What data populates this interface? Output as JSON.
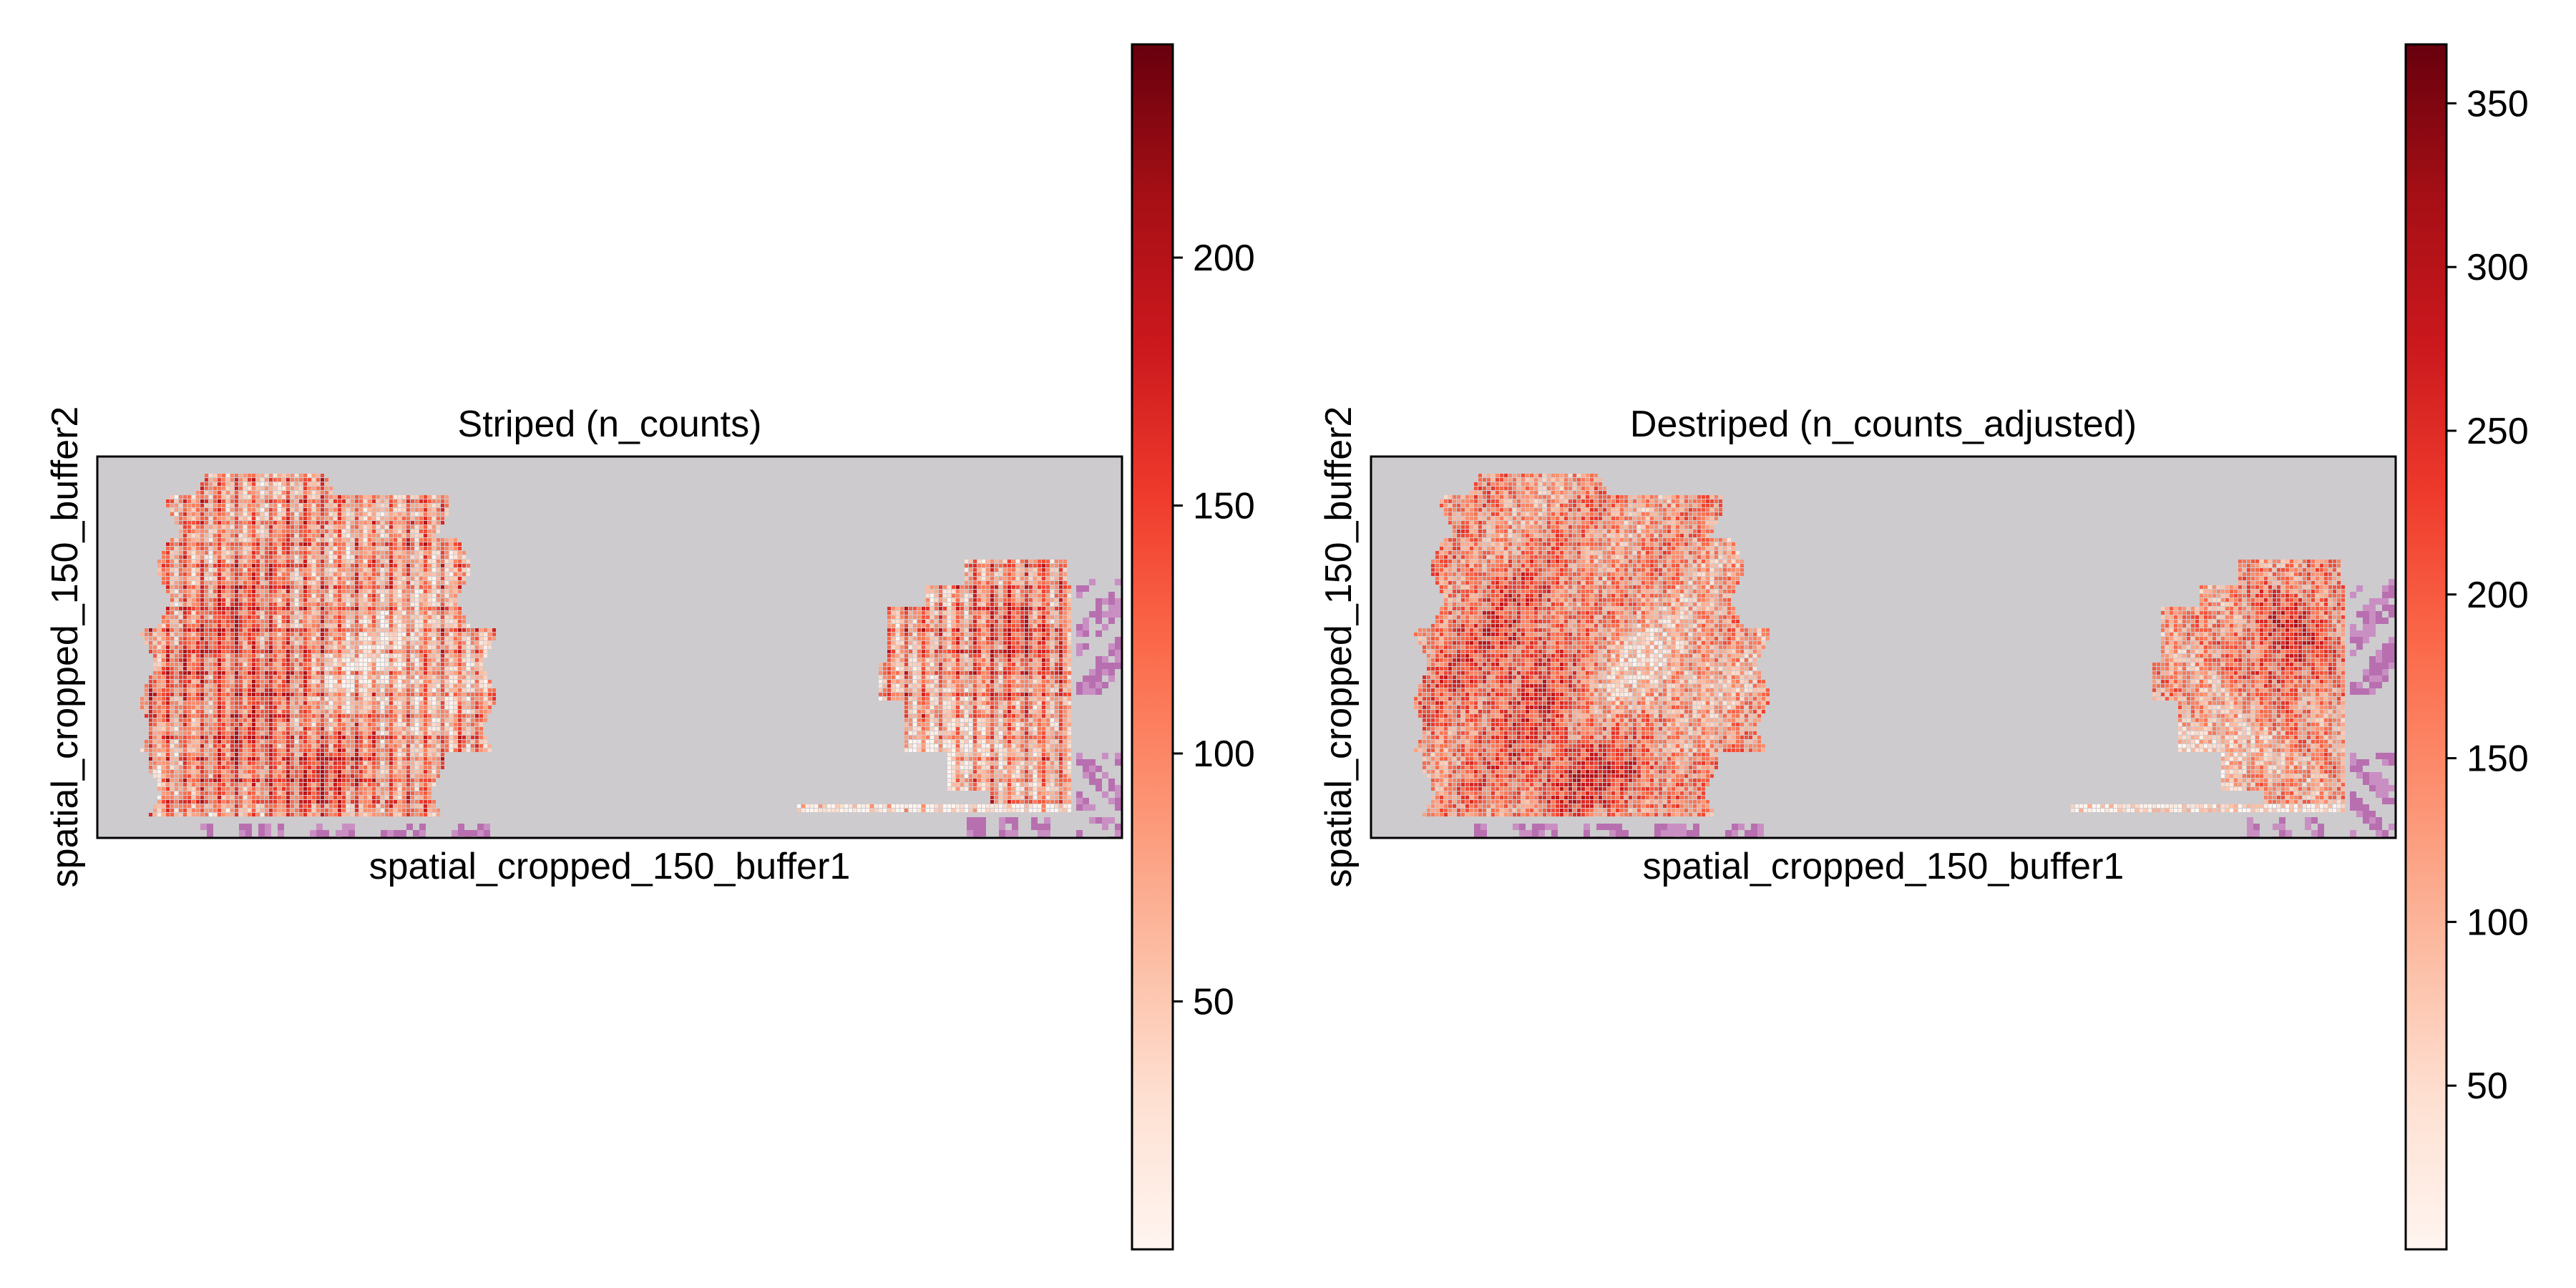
{
  "colormap": {
    "name": "Reds",
    "stops": [
      "#fff5f0",
      "#fee0d2",
      "#fcbba1",
      "#fc9272",
      "#fb6a4a",
      "#ef3b2c",
      "#cb181d",
      "#a50f15",
      "#67000d"
    ]
  },
  "colors": {
    "background_tissue": "#cdcbce",
    "he_stain": "#b86fb0",
    "frame": "#000000"
  },
  "chart_data": [
    {
      "type": "heatmap",
      "title": "Striped (n_counts)",
      "xlabel": "spatial_cropped_150_buffer1",
      "ylabel": "spatial_cropped_150_buffer2",
      "color_range": [
        0,
        243
      ],
      "colorbar_ticks": [
        50,
        100,
        150,
        200
      ],
      "colorbar_tick_labels": [
        "50",
        "100",
        "150",
        "200"
      ],
      "pattern": "striped",
      "grid": false,
      "legend": "colorbar-right"
    },
    {
      "type": "heatmap",
      "title": "Destriped (n_counts_adjusted)",
      "xlabel": "spatial_cropped_150_buffer1",
      "ylabel": "spatial_cropped_150_buffer2",
      "color_range": [
        0,
        368
      ],
      "colorbar_ticks": [
        50,
        100,
        150,
        200,
        250,
        300,
        350
      ],
      "colorbar_tick_labels": [
        "50",
        "100",
        "150",
        "200",
        "250",
        "300",
        "350"
      ],
      "pattern": "smooth",
      "grid": false,
      "legend": "colorbar-right"
    }
  ]
}
